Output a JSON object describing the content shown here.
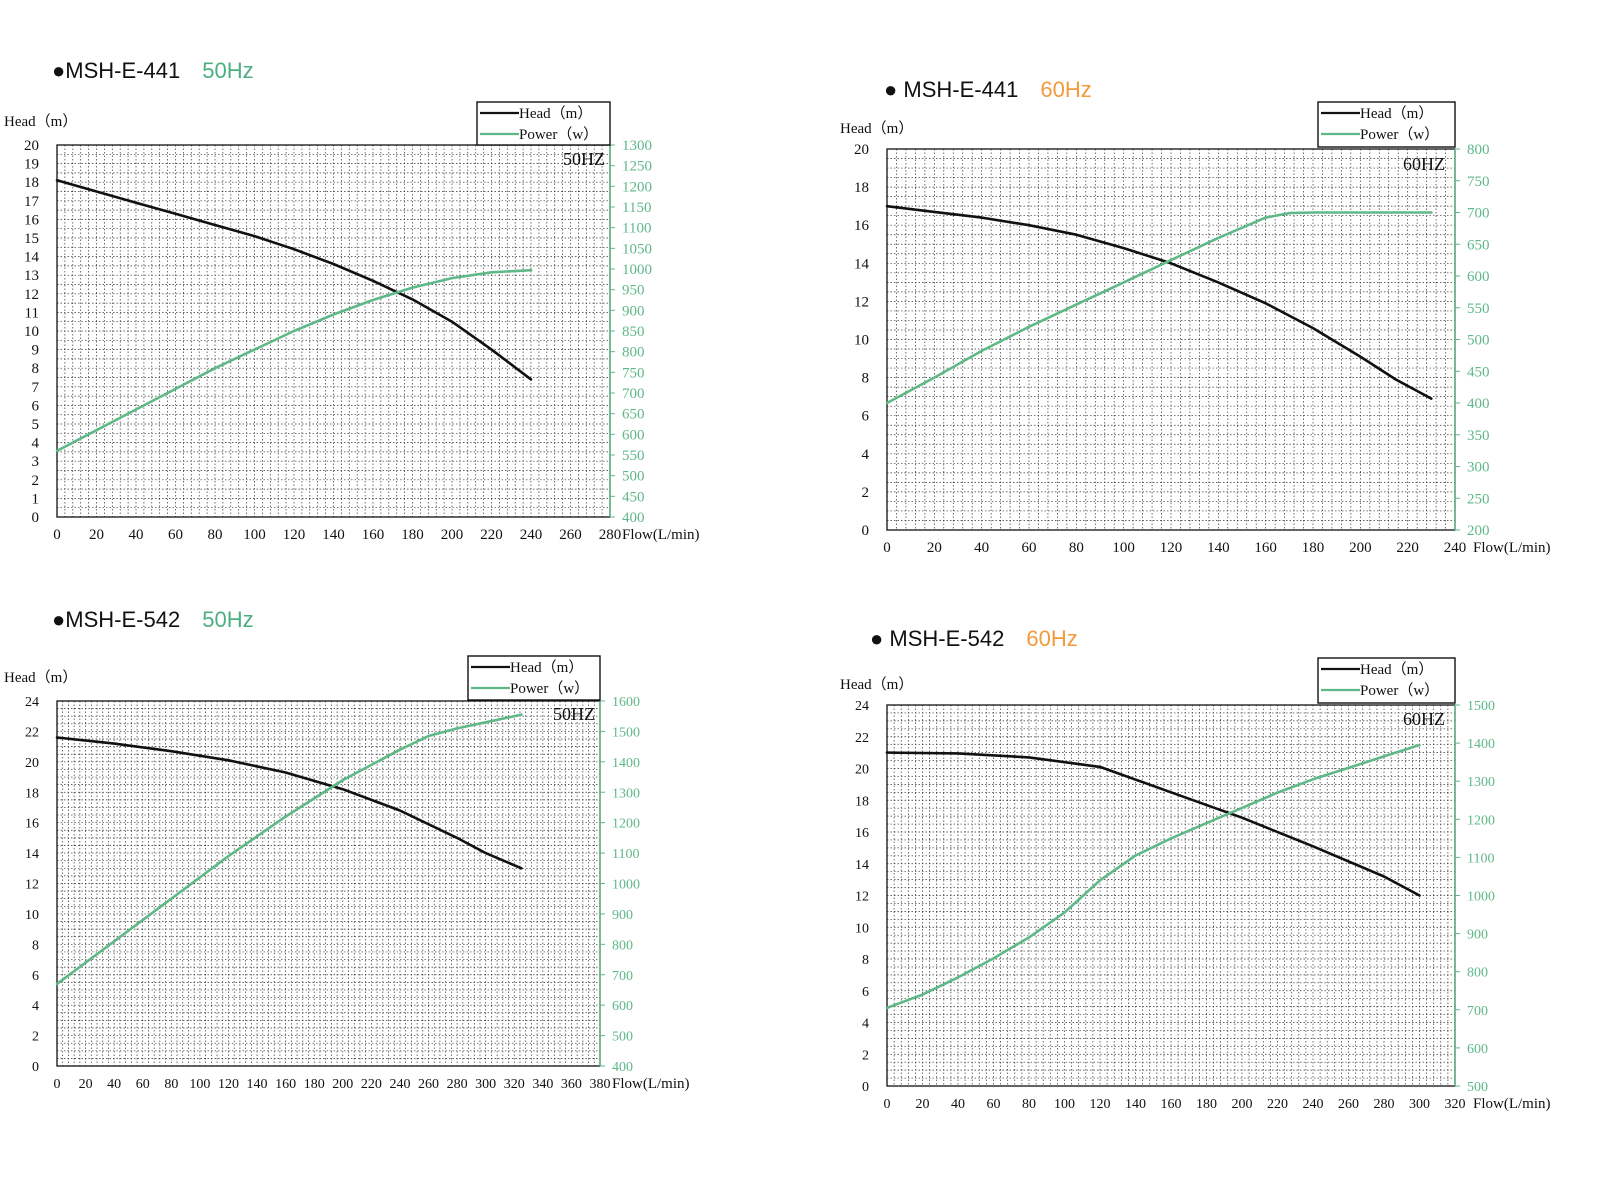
{
  "chart_data": [
    {
      "id": "c1",
      "type": "line",
      "model": "MSH-E-441",
      "freq": "50Hz",
      "freq_color": "#4caf7f",
      "freq_tag": "50HZ",
      "ylabel": "Head（m）",
      "xlabel": "Flow(L/min)",
      "xlim": [
        0,
        280
      ],
      "xticks": [
        0,
        20,
        40,
        60,
        80,
        100,
        120,
        140,
        160,
        180,
        200,
        220,
        240,
        260,
        280
      ],
      "ylim": [
        0,
        20
      ],
      "yticks": [
        0,
        1,
        2,
        3,
        4,
        5,
        6,
        7,
        8,
        9,
        10,
        11,
        12,
        13,
        14,
        15,
        16,
        17,
        18,
        19,
        20
      ],
      "y2lim": [
        400,
        1300
      ],
      "y2ticks": [
        400,
        450,
        500,
        550,
        600,
        650,
        700,
        750,
        800,
        850,
        900,
        950,
        1000,
        1050,
        1100,
        1150,
        1200,
        1250,
        1300
      ],
      "grid": true,
      "legend": [
        "Head（m）",
        "Power（w）"
      ],
      "series": [
        {
          "name": "Head（m）",
          "color": "#111111",
          "axis": "left",
          "x": [
            0,
            20,
            40,
            60,
            80,
            100,
            120,
            140,
            160,
            180,
            200,
            220,
            240
          ],
          "y": [
            18.1,
            17.5,
            16.9,
            16.3,
            15.7,
            15.1,
            14.4,
            13.6,
            12.7,
            11.7,
            10.5,
            9.0,
            7.4
          ]
        },
        {
          "name": "Power（w）",
          "color": "#5fb888",
          "axis": "right",
          "x": [
            0,
            20,
            40,
            60,
            80,
            100,
            120,
            140,
            160,
            180,
            200,
            220,
            240
          ],
          "y": [
            560,
            610,
            660,
            710,
            760,
            805,
            850,
            890,
            925,
            955,
            978,
            992,
            997
          ]
        }
      ]
    },
    {
      "id": "c2",
      "type": "line",
      "model": "MSH-E-441",
      "freq": "60Hz",
      "freq_color": "#f29a3c",
      "freq_tag": "60HZ",
      "ylabel": "Head（m）",
      "xlabel": "Flow(L/min)",
      "xlim": [
        0,
        240
      ],
      "xticks": [
        0,
        20,
        40,
        60,
        80,
        100,
        120,
        140,
        160,
        180,
        200,
        220,
        240
      ],
      "ylim": [
        0,
        20
      ],
      "yticks": [
        0,
        2,
        4,
        6,
        8,
        10,
        12,
        14,
        16,
        18,
        20
      ],
      "y2lim": [
        200,
        800
      ],
      "y2ticks": [
        200,
        250,
        300,
        350,
        400,
        450,
        500,
        550,
        600,
        650,
        700,
        750,
        800
      ],
      "grid": true,
      "legend": [
        "Head（m）",
        "Power（w）"
      ],
      "series": [
        {
          "name": "Head（m）",
          "color": "#111111",
          "axis": "left",
          "x": [
            0,
            20,
            40,
            60,
            80,
            100,
            120,
            140,
            160,
            180,
            200,
            215,
            230
          ],
          "y": [
            17.0,
            16.7,
            16.4,
            16.0,
            15.5,
            14.8,
            14.0,
            13.0,
            11.9,
            10.6,
            9.1,
            7.9,
            6.9
          ]
        },
        {
          "name": "Power（w）",
          "color": "#5fb888",
          "axis": "right",
          "x": [
            0,
            20,
            40,
            60,
            80,
            100,
            120,
            140,
            160,
            170,
            180,
            200,
            230
          ],
          "y": [
            400,
            440,
            482,
            520,
            555,
            590,
            625,
            660,
            692,
            699,
            700,
            700,
            700
          ]
        }
      ]
    },
    {
      "id": "c3",
      "type": "line",
      "model": "MSH-E-542",
      "freq": "50Hz",
      "freq_color": "#4caf7f",
      "freq_tag": "50HZ",
      "ylabel": "Head（m）",
      "xlabel": "Flow(L/min)",
      "xlim": [
        0,
        380
      ],
      "xticks": [
        0,
        20,
        40,
        60,
        80,
        100,
        120,
        140,
        160,
        180,
        200,
        220,
        240,
        260,
        280,
        300,
        320,
        340,
        360,
        380
      ],
      "ylim": [
        0,
        24
      ],
      "yticks": [
        0,
        2,
        4,
        6,
        8,
        10,
        12,
        14,
        16,
        18,
        20,
        22,
        24
      ],
      "y2lim": [
        400,
        1600
      ],
      "y2ticks": [
        400,
        500,
        600,
        700,
        800,
        900,
        1000,
        1100,
        1200,
        1300,
        1400,
        1500,
        1600
      ],
      "grid": true,
      "legend": [
        "Head（m）",
        "Power（w）"
      ],
      "series": [
        {
          "name": "Head（m）",
          "color": "#111111",
          "axis": "left",
          "x": [
            0,
            40,
            80,
            120,
            160,
            200,
            240,
            280,
            300,
            325
          ],
          "y": [
            21.6,
            21.2,
            20.7,
            20.1,
            19.3,
            18.2,
            16.8,
            15.0,
            14.0,
            13.0
          ]
        },
        {
          "name": "Power（w）",
          "color": "#5fb888",
          "axis": "right",
          "x": [
            0,
            40,
            80,
            120,
            160,
            200,
            240,
            260,
            280,
            300,
            325
          ],
          "y": [
            670,
            810,
            950,
            1090,
            1220,
            1340,
            1440,
            1485,
            1510,
            1530,
            1555
          ]
        }
      ]
    },
    {
      "id": "c4",
      "type": "line",
      "model": "MSH-E-542",
      "freq": "60Hz",
      "freq_color": "#f29a3c",
      "freq_tag": "60HZ",
      "ylabel": "Head（m）",
      "xlabel": "Flow(L/min)",
      "xlim": [
        0,
        320
      ],
      "xticks": [
        0,
        20,
        40,
        60,
        80,
        100,
        120,
        140,
        160,
        180,
        200,
        220,
        240,
        260,
        280,
        300,
        320
      ],
      "ylim": [
        0,
        24
      ],
      "yticks": [
        0,
        2,
        4,
        6,
        8,
        10,
        12,
        14,
        16,
        18,
        20,
        22,
        24
      ],
      "y2lim": [
        500,
        1500
      ],
      "y2ticks": [
        500,
        600,
        700,
        800,
        900,
        1000,
        1100,
        1200,
        1300,
        1400,
        1500
      ],
      "grid": true,
      "legend": [
        "Head（m）",
        "Power（w）"
      ],
      "series": [
        {
          "name": "Head（m）",
          "color": "#111111",
          "axis": "left",
          "x": [
            0,
            40,
            80,
            120,
            160,
            200,
            240,
            280,
            300
          ],
          "y": [
            21.0,
            20.95,
            20.7,
            20.1,
            18.5,
            16.9,
            15.1,
            13.2,
            12.0
          ]
        },
        {
          "name": "Power（w）",
          "color": "#5fb888",
          "axis": "right",
          "x": [
            0,
            20,
            40,
            60,
            80,
            100,
            120,
            140,
            160,
            180,
            200,
            220,
            240,
            260,
            280,
            300
          ],
          "y": [
            705,
            740,
            785,
            835,
            890,
            955,
            1040,
            1105,
            1150,
            1190,
            1230,
            1270,
            1305,
            1335,
            1365,
            1395
          ]
        }
      ]
    }
  ]
}
